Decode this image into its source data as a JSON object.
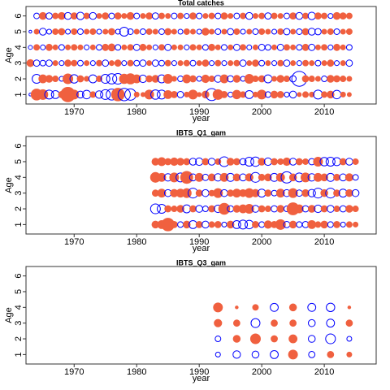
{
  "chart_data": [
    {
      "type": "bubble",
      "title": "Total catches",
      "xlabel": "year",
      "ylabel": "Age",
      "xlim": [
        1962.3,
        2018.3
      ],
      "xticks": [
        1970,
        1980,
        1990,
        2000,
        2010
      ],
      "ylim": [
        0.4,
        6.6
      ],
      "yticks": [
        1,
        2,
        3,
        4,
        5,
        6
      ],
      "positive_color": "#f0603f",
      "negative_color": "#0000ff",
      "x": [
        1963,
        1964,
        1965,
        1966,
        1967,
        1968,
        1969,
        1970,
        1971,
        1972,
        1973,
        1974,
        1975,
        1976,
        1977,
        1978,
        1979,
        1980,
        1981,
        1982,
        1983,
        1984,
        1985,
        1986,
        1987,
        1988,
        1989,
        1990,
        1991,
        1992,
        1993,
        1994,
        1995,
        1996,
        1997,
        1998,
        1999,
        2000,
        2001,
        2002,
        2003,
        2004,
        2005,
        2006,
        2007,
        2008,
        2009,
        2010,
        2011,
        2012,
        2013,
        2014
      ],
      "y": [
        1,
        2,
        3,
        4,
        5,
        6
      ],
      "values": [
        [
          -0.1,
          1.5,
          1.2,
          -1.0,
          -0.8,
          0.5,
          2.6,
          1.0,
          -0.6,
          -0.9,
          0.4,
          -0.7,
          -1.2,
          -1.5,
          2.0,
          -1.9,
          -1.6,
          0.3,
          0.2,
          1.0,
          -1.1,
          -1.0,
          0.8,
          0.5,
          -0.5,
          0.3,
          1.0,
          0.2,
          0.6,
          -1.8,
          1.2,
          0.5,
          -0.3,
          0.9,
          0.4,
          -0.8,
          0.3,
          1.0,
          -0.4,
          0.6,
          0.5,
          -0.3,
          -0.6,
          0.2,
          0.4,
          0.3,
          -1.0,
          0.4,
          0.6,
          -0.9,
          0.3,
          0.2
        ],
        [
          null,
          -1.0,
          0.8,
          0.6,
          0.4,
          -0.3,
          1.2,
          -0.9,
          0.5,
          0.3,
          -0.8,
          0.4,
          -1.0,
          -1.3,
          -1.4,
          1.1,
          1.3,
          0.8,
          -0.7,
          0.5,
          0.6,
          -0.8,
          1.0,
          0.3,
          -0.4,
          0.8,
          0.5,
          -0.3,
          0.7,
          0.4,
          -0.6,
          0.8,
          -0.5,
          0.6,
          -0.3,
          1.0,
          0.4,
          0.5,
          -0.8,
          0.3,
          0.6,
          0.4,
          -0.5,
          -2.8,
          0.5,
          0.4,
          0.3,
          -0.4,
          0.6,
          0.5,
          0.4,
          0.3
        ],
        [
          0.6,
          -0.5,
          -0.4,
          -0.5,
          0.3,
          -0.3,
          0.5,
          0.4,
          -0.4,
          0.3,
          -0.3,
          0.4,
          -0.5,
          0.3,
          0.5,
          -0.3,
          0.4,
          -0.4,
          -0.5,
          0.3,
          -0.5,
          -0.4,
          0.4,
          -0.3,
          0.3,
          0.4,
          -0.4,
          0.3,
          0.5,
          -0.3,
          0.4,
          -0.3,
          0.3,
          0.4,
          -0.5,
          0.3,
          0.5,
          -0.4,
          0.3,
          -0.3,
          0.4,
          -0.5,
          0.3,
          -0.3,
          0.4,
          0.3,
          -0.4,
          0.3,
          0.5,
          -0.3,
          0.3,
          -0.5
        ],
        [
          -0.2,
          0.4,
          -0.3,
          0.5,
          0.3,
          -0.4,
          0.3,
          0.4,
          0.3,
          -0.3,
          0.3,
          -0.4,
          0.5,
          0.6,
          -0.4,
          0.3,
          0.4,
          -0.5,
          0.5,
          0.3,
          -0.3,
          0.4,
          -0.5,
          0.3,
          0.3,
          -0.3,
          0.4,
          0.3,
          -0.4,
          0.5,
          0.3,
          -0.4,
          0.3,
          -0.5,
          0.4,
          -0.3,
          0.3,
          -0.5,
          -0.4,
          0.3,
          -0.5,
          0.4,
          0.3,
          -0.4,
          0.5,
          -0.5,
          0.3,
          0.4,
          -0.3,
          0.5,
          0.3,
          -0.4
        ],
        [
          -0.1,
          0.3,
          -0.6,
          -0.3,
          0.4,
          0.5,
          -0.3,
          0.4,
          -0.4,
          0.3,
          0.4,
          -0.3,
          0.3,
          0.5,
          -0.3,
          -1.0,
          -0.4,
          0.3,
          -0.4,
          0.4,
          0.3,
          -0.4,
          0.5,
          0.3,
          -0.3,
          0.4,
          0.3,
          -0.3,
          0.6,
          0.3,
          -0.4,
          0.3,
          -0.5,
          0.4,
          -0.3,
          0.3,
          -0.4,
          0.4,
          0.3,
          -0.3,
          0.4,
          -0.5,
          0.3,
          -0.4,
          0.5,
          -0.6,
          -0.5,
          0.3,
          0.4,
          -0.4,
          0.3,
          0.4
        ],
        [
          null,
          -0.4,
          0.6,
          -0.5,
          0.4,
          0.6,
          -0.6,
          0.5,
          -0.7,
          0.4,
          -0.6,
          0.3,
          0.5,
          -0.4,
          0.5,
          0.3,
          0.6,
          -0.4,
          0.3,
          0.5,
          -0.5,
          0.4,
          0.3,
          -0.4,
          0.4,
          -0.3,
          0.5,
          -0.4,
          0.3,
          0.4,
          -0.4,
          0.5,
          0.3,
          -0.4,
          0.4,
          -0.6,
          0.3,
          0.4,
          -0.5,
          0.4,
          0.3,
          -0.4,
          0.5,
          -0.6,
          0.4,
          -0.7,
          0.5,
          0.4,
          -0.3,
          0.6,
          0.5,
          0.4
        ]
      ]
    },
    {
      "type": "bubble",
      "title": "IBTS_Q1_gam",
      "xlabel": "year",
      "ylabel": "Age",
      "xlim": [
        1962.3,
        2018.3
      ],
      "xticks": [
        1970,
        1980,
        1990,
        2000,
        2010
      ],
      "ylim": [
        0.4,
        6.6
      ],
      "yticks": [
        1,
        2,
        3,
        4,
        5,
        6
      ],
      "positive_color": "#f0603f",
      "negative_color": "#0000ff",
      "x": [
        1983,
        1984,
        1985,
        1986,
        1987,
        1988,
        1989,
        1990,
        1991,
        1992,
        1993,
        1994,
        1995,
        1996,
        1997,
        1998,
        1999,
        2000,
        2001,
        2002,
        2003,
        2004,
        2005,
        2006,
        2007,
        2008,
        2009,
        2010,
        2011,
        2012,
        2013,
        2014,
        2015
      ],
      "y": [
        1,
        2,
        3,
        4,
        5
      ],
      "values": [
        [
          0.6,
          0.8,
          2.0,
          0.5,
          -0.4,
          0.6,
          -0.8,
          0.5,
          -0.6,
          0.4,
          0.5,
          -0.3,
          0.6,
          -0.8,
          -1.0,
          -0.9,
          0.5,
          -0.4,
          0.7,
          0.5,
          1.2,
          -0.5,
          0.6,
          -0.4,
          -0.5,
          0.8,
          0.4,
          0.6,
          -0.4,
          0.5,
          -0.3,
          0.4,
          0.3
        ],
        [
          -1.2,
          -1.0,
          0.5,
          0.4,
          0.6,
          -0.8,
          0.5,
          -0.6,
          -0.4,
          0.5,
          -0.7,
          1.5,
          -0.5,
          0.6,
          0.8,
          1.0,
          -0.6,
          0.5,
          0.4,
          -0.5,
          0.6,
          -0.4,
          1.8,
          0.8,
          -0.5,
          0.6,
          -0.7,
          0.5,
          -0.6,
          0.4,
          -0.5,
          0.6,
          0.4
        ],
        [
          0.5,
          0.8,
          -0.6,
          0.7,
          0.8,
          1.0,
          -1.2,
          0.5,
          -0.6,
          0.4,
          1.0,
          -0.6,
          0.5,
          0.8,
          0.6,
          1.0,
          0.7,
          -0.8,
          0.5,
          -0.4,
          0.8,
          -0.6,
          1.0,
          -0.5,
          0.6,
          -0.7,
          -1.2,
          0.6,
          -1.2,
          0.5,
          -0.8,
          0.6,
          -0.6
        ],
        [
          1.2,
          0.8,
          -0.7,
          1.0,
          -1.0,
          1.8,
          -0.6,
          0.8,
          -0.5,
          0.6,
          -0.7,
          0.8,
          -0.8,
          0.6,
          -0.6,
          0.7,
          -1.2,
          0.5,
          0.6,
          -0.8,
          0.8,
          -1.6,
          0.6,
          -1.0,
          1.0,
          -0.7,
          0.8,
          0.6,
          -0.8,
          0.5,
          -0.6,
          0.7,
          -0.4
        ],
        [
          0.6,
          0.8,
          0.5,
          0.7,
          0.6,
          0.5,
          -0.6,
          -0.7,
          0.5,
          -0.6,
          0.4,
          -1.2,
          0.6,
          0.5,
          -0.5,
          -1.0,
          -1.1,
          0.6,
          -0.7,
          0.5,
          0.4,
          0.7,
          -0.6,
          0.5,
          0.4,
          -0.5,
          1.0,
          -0.9,
          -1.0,
          -0.8,
          0.5,
          -0.6,
          0.4
        ]
      ]
    },
    {
      "type": "bubble",
      "title": "IBTS_Q3_gam",
      "xlabel": "year",
      "ylabel": "Age",
      "xlim": [
        1962.3,
        2018.3
      ],
      "xticks": [
        1970,
        1980,
        1990,
        2000,
        2010
      ],
      "ylim": [
        0.4,
        6.6
      ],
      "yticks": [
        1,
        2,
        3,
        4,
        5,
        6
      ],
      "positive_color": "#f0603f",
      "negative_color": "#0000ff",
      "x": [
        1993,
        1996,
        1999,
        2002,
        2005,
        2008,
        2011,
        2014
      ],
      "y": [
        1,
        2,
        3,
        4
      ],
      "values": [
        [
          -0.3,
          -0.7,
          -0.6,
          -0.8,
          1.0,
          -0.5,
          0.5,
          0.3
        ],
        [
          -0.4,
          0.6,
          1.2,
          0.5,
          0.8,
          -0.6,
          -1.2,
          -0.3
        ],
        [
          0.7,
          0.5,
          -1.0,
          0.5,
          0.5,
          -0.6,
          -0.8,
          0.5
        ],
        [
          1.0,
          0.1,
          0.4,
          -0.8,
          0.6,
          -0.8,
          -0.9,
          0.1
        ]
      ]
    }
  ]
}
